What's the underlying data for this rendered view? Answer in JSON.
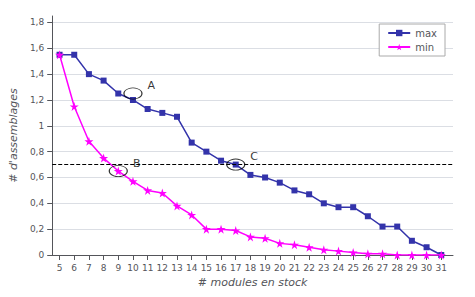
{
  "chart_data": {
    "type": "line",
    "x": [
      5,
      6,
      7,
      8,
      9,
      10,
      11,
      12,
      13,
      14,
      15,
      16,
      17,
      18,
      19,
      20,
      21,
      22,
      23,
      24,
      25,
      26,
      27,
      28,
      29,
      30,
      31
    ],
    "series": [
      {
        "name": "max",
        "color": "#3333AA",
        "marker": "square",
        "values": [
          1.55,
          1.55,
          1.4,
          1.35,
          1.25,
          1.2,
          1.13,
          1.1,
          1.07,
          0.87,
          0.8,
          0.73,
          0.7,
          0.62,
          0.6,
          0.56,
          0.5,
          0.47,
          0.4,
          0.37,
          0.37,
          0.3,
          0.22,
          0.22,
          0.11,
          0.06,
          0.0
        ]
      },
      {
        "name": "min",
        "color": "#FF00FF",
        "marker": "star",
        "values": [
          1.55,
          1.15,
          0.88,
          0.75,
          0.65,
          0.57,
          0.5,
          0.48,
          0.38,
          0.31,
          0.2,
          0.2,
          0.19,
          0.14,
          0.13,
          0.09,
          0.08,
          0.06,
          0.04,
          0.03,
          0.02,
          0.01,
          0.01,
          0.0,
          0.0,
          0.0,
          0.0
        ]
      }
    ],
    "reference_line": {
      "y": 0.7,
      "color": "#000000",
      "line_style": "dashed"
    },
    "annotations": [
      {
        "label": "A",
        "x": 10,
        "y": 1.25
      },
      {
        "label": "B",
        "x": 9,
        "y": 0.65
      },
      {
        "label": "C",
        "x": 17,
        "y": 0.7
      }
    ],
    "xlabel": "# modules en stock",
    "ylabel": "# d'assemblages",
    "xlim": [
      4.5,
      31.8
    ],
    "ylim": [
      0,
      1.85
    ],
    "xticks": [
      5,
      6,
      7,
      8,
      9,
      10,
      11,
      12,
      13,
      14,
      15,
      16,
      17,
      18,
      19,
      20,
      21,
      22,
      23,
      24,
      25,
      26,
      27,
      28,
      29,
      30,
      31
    ],
    "yticks": [
      0,
      {
        "value": 0.2,
        "label": "0,2"
      },
      {
        "value": 0.4,
        "label": "0,4"
      },
      {
        "value": 0.6,
        "label": "0,6"
      },
      {
        "value": 0.8,
        "label": "0,8"
      },
      1,
      {
        "value": 1.2,
        "label": "1,2"
      },
      {
        "value": 1.4,
        "label": "1,4"
      },
      {
        "value": 1.6,
        "label": "1,6"
      },
      {
        "value": 1.8,
        "label": "1,8"
      }
    ],
    "grid": "y",
    "legend": "upper right"
  }
}
